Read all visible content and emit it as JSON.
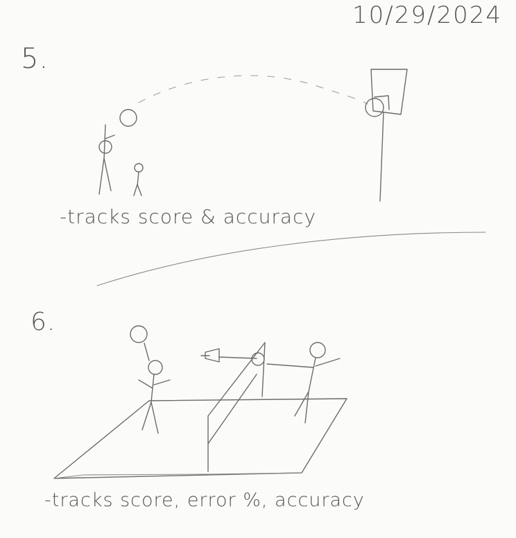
{
  "header": {
    "date": "10/29/2024"
  },
  "sketches": [
    {
      "number": "5.",
      "note": "-tracks score & accuracy"
    },
    {
      "number": "6.",
      "note": "-tracks score, error %, accuracy"
    }
  ],
  "colors": {
    "paper": "#fbfbfa",
    "pencil": "#6b6b6b"
  }
}
